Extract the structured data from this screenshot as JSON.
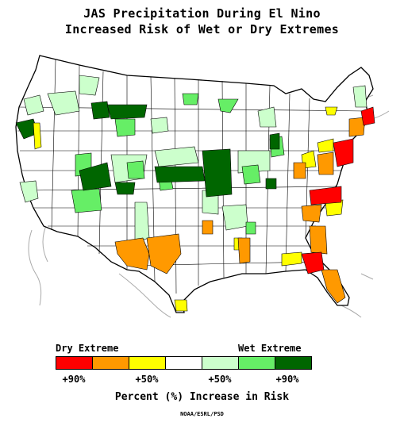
{
  "title": {
    "line1": "JAS Precipitation During El Nino",
    "line2": "Increased Risk of Wet or Dry Extremes"
  },
  "legend": {
    "left_label": "Dry Extreme",
    "right_label": "Wet Extreme",
    "classes": [
      {
        "name": "dry-90",
        "color": "#ff0000"
      },
      {
        "name": "dry-70",
        "color": "#ff9900"
      },
      {
        "name": "dry-50",
        "color": "#ffff00"
      },
      {
        "name": "neutral",
        "color": "#ffffff"
      },
      {
        "name": "wet-50",
        "color": "#ccffcc"
      },
      {
        "name": "wet-70",
        "color": "#66ee66"
      },
      {
        "name": "wet-90",
        "color": "#006600"
      }
    ],
    "ticks": [
      "+90%",
      "+50%",
      "+50%",
      "+90%"
    ]
  },
  "caption": "Percent (%) Increase in Risk",
  "credit": "NOAA/ESRL/PSD",
  "colors": {
    "border": "#000000",
    "coast": "#999999"
  }
}
